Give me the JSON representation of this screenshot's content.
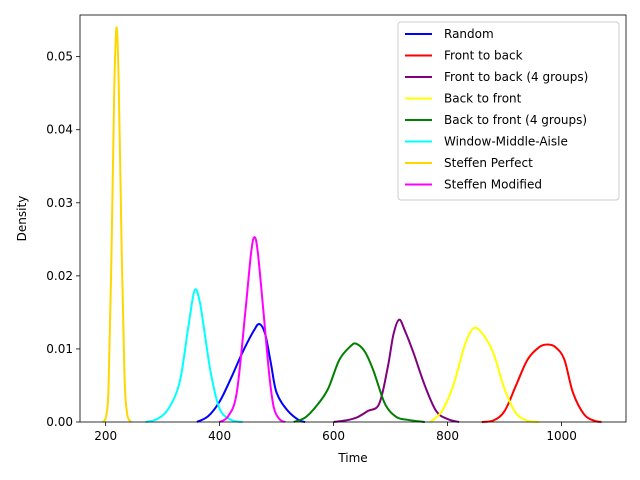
{
  "chart_data": {
    "type": "line",
    "xlabel": "Time",
    "ylabel": "Density",
    "xlim": [
      155,
      1113
    ],
    "ylim": [
      0,
      0.0557
    ],
    "x_ticks": [
      200,
      400,
      600,
      800,
      1000
    ],
    "y_ticks": [
      0.0,
      0.01,
      0.02,
      0.03,
      0.04,
      0.05
    ],
    "y_tick_labels": [
      "0.00",
      "0.01",
      "0.02",
      "0.03",
      "0.04",
      "0.05"
    ],
    "grid": false,
    "legend_position": "top-right",
    "series": [
      {
        "name": "Random",
        "color": "#0000ff",
        "points": [
          [
            360,
            0
          ],
          [
            380,
            0.0008
          ],
          [
            400,
            0.0028
          ],
          [
            420,
            0.006
          ],
          [
            440,
            0.0095
          ],
          [
            460,
            0.0125
          ],
          [
            470,
            0.0134
          ],
          [
            480,
            0.012
          ],
          [
            490,
            0.008
          ],
          [
            500,
            0.004
          ],
          [
            520,
            0.0015
          ],
          [
            540,
            0.0002
          ],
          [
            550,
            0
          ]
        ]
      },
      {
        "name": "Front to back",
        "color": "#ff0000",
        "points": [
          [
            860,
            0
          ],
          [
            880,
            0.0002
          ],
          [
            900,
            0.0015
          ],
          [
            920,
            0.005
          ],
          [
            940,
            0.0085
          ],
          [
            960,
            0.0102
          ],
          [
            975,
            0.0106
          ],
          [
            990,
            0.0102
          ],
          [
            1005,
            0.0085
          ],
          [
            1020,
            0.004
          ],
          [
            1040,
            0.001
          ],
          [
            1060,
            0.0001
          ],
          [
            1070,
            0
          ]
        ]
      },
      {
        "name": "Front to back (4 groups)",
        "color": "#800080",
        "points": [
          [
            600,
            0
          ],
          [
            620,
            0.0002
          ],
          [
            640,
            0.0006
          ],
          [
            660,
            0.0015
          ],
          [
            680,
            0.0025
          ],
          [
            695,
            0.0075
          ],
          [
            705,
            0.012
          ],
          [
            715,
            0.014
          ],
          [
            725,
            0.0125
          ],
          [
            740,
            0.0095
          ],
          [
            760,
            0.005
          ],
          [
            780,
            0.0015
          ],
          [
            800,
            0.0004
          ],
          [
            820,
            0
          ]
        ]
      },
      {
        "name": "Back to front",
        "color": "#ffff00",
        "points": [
          [
            770,
            0
          ],
          [
            790,
            0.0015
          ],
          [
            810,
            0.005
          ],
          [
            830,
            0.0105
          ],
          [
            845,
            0.0128
          ],
          [
            860,
            0.0122
          ],
          [
            880,
            0.0095
          ],
          [
            900,
            0.0045
          ],
          [
            920,
            0.0012
          ],
          [
            940,
            0.0002
          ],
          [
            960,
            0
          ]
        ]
      },
      {
        "name": "Back to front (4 groups)",
        "color": "#008000",
        "points": [
          [
            530,
            0
          ],
          [
            550,
            0.0006
          ],
          [
            570,
            0.0022
          ],
          [
            590,
            0.0045
          ],
          [
            610,
            0.0085
          ],
          [
            630,
            0.0104
          ],
          [
            640,
            0.0107
          ],
          [
            655,
            0.0096
          ],
          [
            670,
            0.007
          ],
          [
            690,
            0.0025
          ],
          [
            710,
            0.0007
          ],
          [
            730,
            0.0003
          ],
          [
            760,
            0
          ]
        ]
      },
      {
        "name": "Window-Middle-Aisle",
        "color": "#00ffff",
        "points": [
          [
            270,
            0
          ],
          [
            290,
            0.0004
          ],
          [
            310,
            0.0018
          ],
          [
            330,
            0.0055
          ],
          [
            345,
            0.013
          ],
          [
            356,
            0.018
          ],
          [
            365,
            0.0165
          ],
          [
            375,
            0.0115
          ],
          [
            385,
            0.0065
          ],
          [
            400,
            0.0018
          ],
          [
            420,
            0.0003
          ],
          [
            440,
            0
          ]
        ]
      },
      {
        "name": "Steffen Perfect",
        "color": "#ffd700",
        "points": [
          [
            195,
            0
          ],
          [
            200,
            0.0005
          ],
          [
            205,
            0.0045
          ],
          [
            210,
            0.022
          ],
          [
            215,
            0.045
          ],
          [
            219,
            0.054
          ],
          [
            223,
            0.046
          ],
          [
            228,
            0.024
          ],
          [
            233,
            0.0065
          ],
          [
            238,
            0.001
          ],
          [
            245,
            0
          ]
        ]
      },
      {
        "name": "Steffen Modified",
        "color": "#ff00ff",
        "points": [
          [
            400,
            0
          ],
          [
            415,
            0.0008
          ],
          [
            430,
            0.004
          ],
          [
            445,
            0.015
          ],
          [
            455,
            0.023
          ],
          [
            461,
            0.0253
          ],
          [
            467,
            0.0232
          ],
          [
            477,
            0.015
          ],
          [
            487,
            0.0065
          ],
          [
            495,
            0.002
          ],
          [
            505,
            0.0004
          ],
          [
            515,
            0
          ]
        ]
      }
    ]
  }
}
